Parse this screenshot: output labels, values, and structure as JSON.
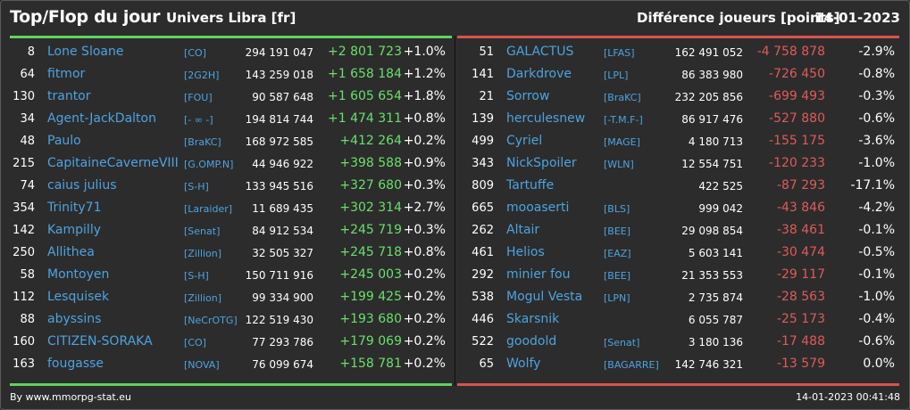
{
  "header": {
    "title": "Top/Flop du jour",
    "subtitle": "Univers Libra [fr]",
    "right_title": "Différence joueurs [points]",
    "date": "14-01-2023"
  },
  "colors": {
    "top": "#5fd35f",
    "flop": "#d9534f",
    "link": "#4da3e0"
  },
  "top": [
    {
      "rank": "8",
      "name": "Lone Sloane",
      "ally": "[CO]",
      "points": "294 191 047",
      "diff": "+2 801 723",
      "pct": "+1.0%"
    },
    {
      "rank": "64",
      "name": "fitmor",
      "ally": "[2G2H]",
      "points": "143 259 018",
      "diff": "+1 658 184",
      "pct": "+1.2%"
    },
    {
      "rank": "130",
      "name": "trantor",
      "ally": "[FOU]",
      "points": "90 587 648",
      "diff": "+1 605 654",
      "pct": "+1.8%"
    },
    {
      "rank": "34",
      "name": "Agent-JackDalton",
      "ally": "[- ∞ -]",
      "points": "194 814 744",
      "diff": "+1 474 311",
      "pct": "+0.8%"
    },
    {
      "rank": "48",
      "name": "Paulo",
      "ally": "[BraKC]",
      "points": "168 972 585",
      "diff": "+412 264",
      "pct": "+0.2%"
    },
    {
      "rank": "215",
      "name": "CapitaineCaverneVIII",
      "ally": "[G.OMP.N]",
      "points": "44 946 922",
      "diff": "+398 588",
      "pct": "+0.9%"
    },
    {
      "rank": "74",
      "name": "caius julius",
      "ally": "[S-H]",
      "points": "133 945 516",
      "diff": "+327 680",
      "pct": "+0.3%"
    },
    {
      "rank": "354",
      "name": "Trinity71",
      "ally": "[Laraider]",
      "points": "11 689 435",
      "diff": "+302 314",
      "pct": "+2.7%"
    },
    {
      "rank": "142",
      "name": "Kampilly",
      "ally": "[Senat]",
      "points": "84 912 534",
      "diff": "+245 719",
      "pct": "+0.3%"
    },
    {
      "rank": "250",
      "name": "Allithea",
      "ally": "[Zillion]",
      "points": "32 505 327",
      "diff": "+245 718",
      "pct": "+0.8%"
    },
    {
      "rank": "58",
      "name": "Montoyen",
      "ally": "[S-H]",
      "points": "150 711 916",
      "diff": "+245 003",
      "pct": "+0.2%"
    },
    {
      "rank": "112",
      "name": "Lesquisek",
      "ally": "[Zillion]",
      "points": "99 334 900",
      "diff": "+199 425",
      "pct": "+0.2%"
    },
    {
      "rank": "88",
      "name": "abyssins",
      "ally": "[NeCrOTG]",
      "points": "122 519 430",
      "diff": "+193 680",
      "pct": "+0.2%"
    },
    {
      "rank": "160",
      "name": "CITIZEN-SORAKA",
      "ally": "[CO]",
      "points": "77 293 786",
      "diff": "+179 069",
      "pct": "+0.2%"
    },
    {
      "rank": "163",
      "name": "fougasse",
      "ally": "[NOVA]",
      "points": "76 099 674",
      "diff": "+158 781",
      "pct": "+0.2%"
    }
  ],
  "flop": [
    {
      "rank": "51",
      "name": "GALACTUS",
      "ally": "[LFAS]",
      "points": "162 491 052",
      "diff": "-4 758 878",
      "pct": "-2.9%"
    },
    {
      "rank": "141",
      "name": "Darkdrove",
      "ally": "[LPL]",
      "points": "86 383 980",
      "diff": "-726 450",
      "pct": "-0.8%"
    },
    {
      "rank": "21",
      "name": "Sorrow",
      "ally": "[BraKC]",
      "points": "232 205 856",
      "diff": "-699 493",
      "pct": "-0.3%"
    },
    {
      "rank": "139",
      "name": "herculesnew",
      "ally": "[-T.M.F-]",
      "points": "86 917 476",
      "diff": "-527 880",
      "pct": "-0.6%"
    },
    {
      "rank": "499",
      "name": "Cyriel",
      "ally": "[MAGE]",
      "points": "4 180 713",
      "diff": "-155 175",
      "pct": "-3.6%"
    },
    {
      "rank": "343",
      "name": "NickSpoiler",
      "ally": "[WLN]",
      "points": "12 554 751",
      "diff": "-120 233",
      "pct": "-1.0%"
    },
    {
      "rank": "809",
      "name": "Tartuffe",
      "ally": "",
      "points": "422 525",
      "diff": "-87 293",
      "pct": "-17.1%"
    },
    {
      "rank": "665",
      "name": "mooaserti",
      "ally": "[BLS]",
      "points": "999 042",
      "diff": "-43 846",
      "pct": "-4.2%"
    },
    {
      "rank": "262",
      "name": "Altair",
      "ally": "[BEE]",
      "points": "29 098 854",
      "diff": "-38 461",
      "pct": "-0.1%"
    },
    {
      "rank": "461",
      "name": "Helios",
      "ally": "[EAZ]",
      "points": "5 603 141",
      "diff": "-30 474",
      "pct": "-0.5%"
    },
    {
      "rank": "292",
      "name": "minier fou",
      "ally": "[BEE]",
      "points": "21 353 553",
      "diff": "-29 117",
      "pct": "-0.1%"
    },
    {
      "rank": "538",
      "name": "Mogul Vesta",
      "ally": "[LPN]",
      "points": "2 735 874",
      "diff": "-28 563",
      "pct": "-1.0%"
    },
    {
      "rank": "446",
      "name": "Skarsnik",
      "ally": "",
      "points": "6 055 787",
      "diff": "-25 173",
      "pct": "-0.4%"
    },
    {
      "rank": "522",
      "name": "goodold",
      "ally": "[Senat]",
      "points": "3 180 136",
      "diff": "-17 488",
      "pct": "-0.6%"
    },
    {
      "rank": "65",
      "name": "Wolfy",
      "ally": "[BAGARRE]",
      "points": "142 746 321",
      "diff": "-13 579",
      "pct": "0.0%"
    }
  ],
  "footer": {
    "left": "By www.mmorpg-stat.eu",
    "right": "14-01-2023 00:41:48"
  }
}
